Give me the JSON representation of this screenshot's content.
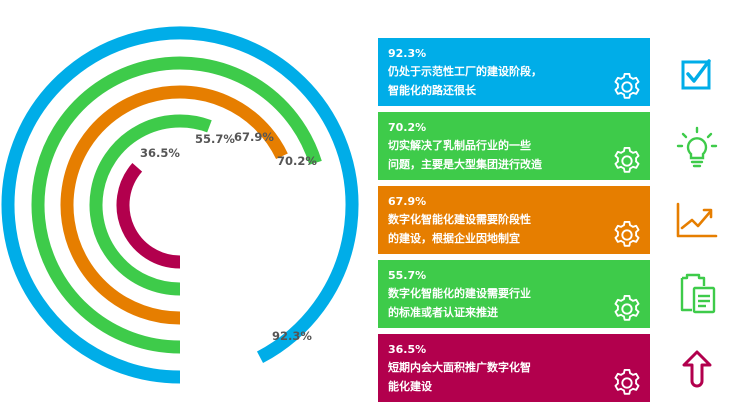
{
  "colors": {
    "blue": "#00ade8",
    "green": "#3ecb4a",
    "orange": "#e67e00",
    "crimson": "#b2004d",
    "label": "#555555"
  },
  "chart_data": {
    "type": "radial-bar",
    "title": "",
    "unit": "%",
    "max": 100,
    "series": [
      {
        "value": 92.3,
        "label": "92.3%",
        "color": "#00ade8"
      },
      {
        "value": 70.2,
        "label": "70.2%",
        "color": "#3ecb4a"
      },
      {
        "value": 67.9,
        "label": "67.9%",
        "color": "#e67e00"
      },
      {
        "value": 55.7,
        "label": "55.7%",
        "color": "#3ecb4a"
      },
      {
        "value": 36.5,
        "label": "36.5%",
        "color": "#b2004d"
      }
    ]
  },
  "cards": [
    {
      "value": "92.3%",
      "line1": "仍处于示范性工厂的建设阶段，",
      "line2": "智能化的路还很长",
      "color": "#00ade8",
      "icon": "checkbox-icon"
    },
    {
      "value": "70.2%",
      "line1": "切实解决了乳制品行业的一些",
      "line2": "问题，主要是大型集团进行改造",
      "color": "#3ecb4a",
      "icon": "lightbulb-icon"
    },
    {
      "value": "67.9%",
      "line1": "数字化智能化建设需要阶段性",
      "line2": "的建设，根据企业因地制宜",
      "color": "#e67e00",
      "icon": "trend-chart-icon"
    },
    {
      "value": "55.7%",
      "line1": "数字化智能化的建设需要行业",
      "line2": "的标准或者认证来推进",
      "color": "#3ecb4a",
      "icon": "clipboard-icon"
    },
    {
      "value": "36.5%",
      "line1": "短期内会大面积推广数字化智",
      "line2": "能化建设",
      "color": "#b2004d",
      "icon": "up-arrow-icon"
    }
  ]
}
